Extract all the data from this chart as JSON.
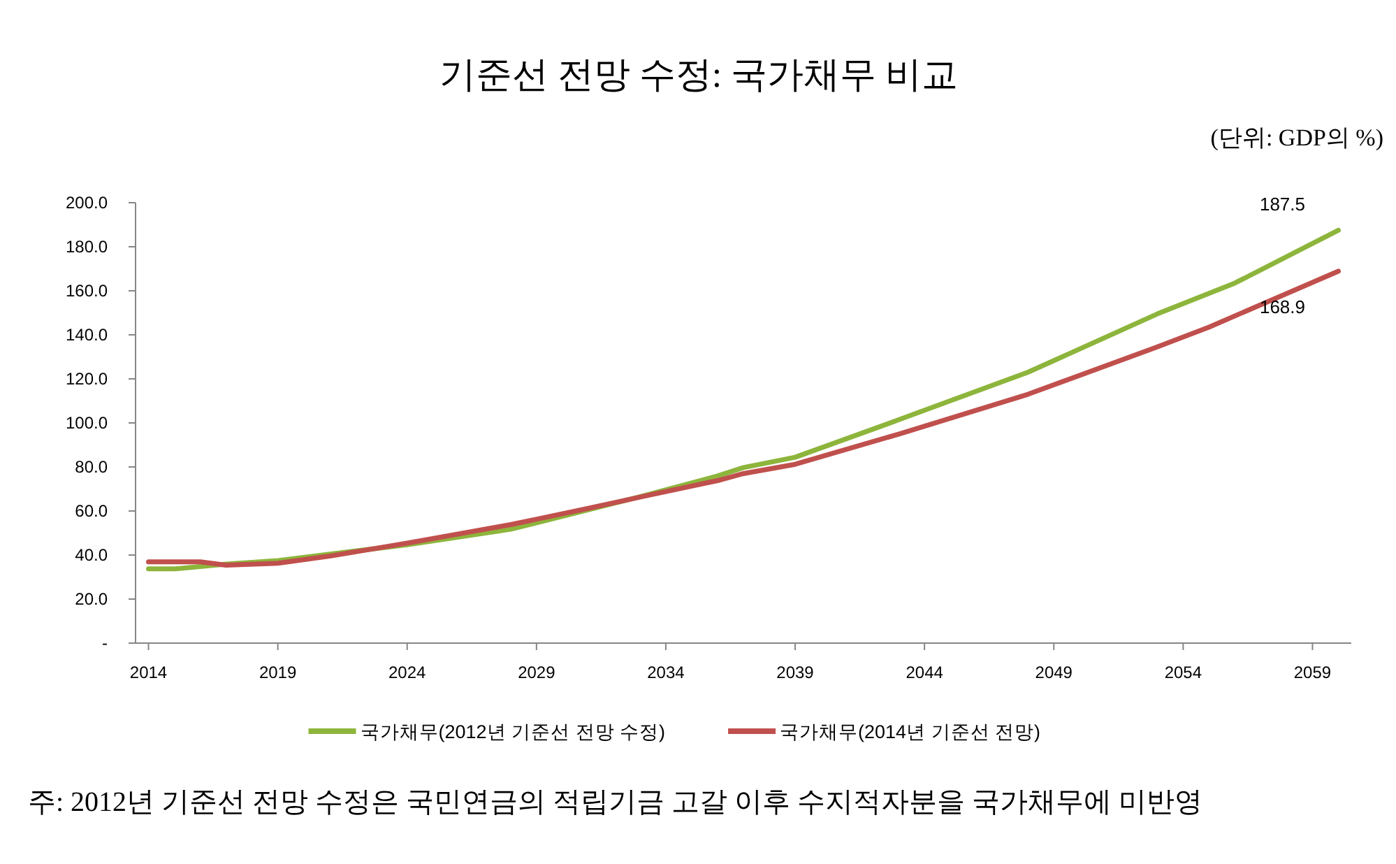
{
  "chart_data": {
    "type": "line",
    "title": "기준선 전망 수정: 국가채무 비교",
    "subtitle": "(단위: GDP의 %)",
    "annotations": [
      {
        "text": "187.5",
        "x": 2060,
        "y": 187.5
      },
      {
        "text": "168.9",
        "x": 2060,
        "y": 168.9
      },
      "주: 2012년 기준선 전망 수정은 국민연금의 적립기금 고갈 이후 수지적자분을 국가채무에 미반영"
    ],
    "series": [
      {
        "name": "국가채무(2012년 기준선 전망 수정)",
        "color": "#8db53c",
        "x": [
          2014,
          2015,
          2017,
          2019,
          2024,
          2028,
          2033,
          2036,
          2037,
          2039,
          2043,
          2048,
          2053,
          2056,
          2060
        ],
        "values": [
          33.7,
          33.7,
          35.9,
          37.5,
          44.7,
          51.7,
          66.5,
          75.9,
          79.7,
          84.4,
          101.4,
          123,
          149.5,
          163.5,
          187.5
        ]
      },
      {
        "name": "국가채무(2014년 기준선 전망)",
        "color": "#c0504d",
        "x": [
          2014,
          2016,
          2017,
          2019,
          2021,
          2024,
          2028,
          2031,
          2033,
          2036,
          2037,
          2039,
          2043,
          2048,
          2053,
          2055,
          2060
        ],
        "values": [
          36.9,
          36.9,
          35.4,
          36.3,
          39.5,
          45.4,
          53.8,
          61.2,
          66.3,
          73.8,
          77,
          81.2,
          94.9,
          113,
          134.5,
          143.5,
          168.9
        ]
      }
    ],
    "xlim": [
      2013.5,
      2060.5
    ],
    "xticks": [
      2014,
      2019,
      2024,
      2029,
      2034,
      2039,
      2044,
      2049,
      2054,
      2059
    ],
    "ylim": [
      0,
      200
    ],
    "yticks": [
      {
        "value": 0,
        "label": "-"
      },
      {
        "value": 20,
        "label": "20.0"
      },
      {
        "value": 40,
        "label": "40.0"
      },
      {
        "value": 60,
        "label": "60.0"
      },
      {
        "value": 80,
        "label": "80.0"
      },
      {
        "value": 100,
        "label": "100.0"
      },
      {
        "value": 120,
        "label": "120.0"
      },
      {
        "value": 140,
        "label": "140.0"
      },
      {
        "value": 160,
        "label": "160.0"
      },
      {
        "value": 180,
        "label": "180.0"
      },
      {
        "value": 200,
        "label": "200.0"
      }
    ],
    "grid": false,
    "legend": "bottom",
    "marker": "none",
    "line_style": "solid"
  }
}
